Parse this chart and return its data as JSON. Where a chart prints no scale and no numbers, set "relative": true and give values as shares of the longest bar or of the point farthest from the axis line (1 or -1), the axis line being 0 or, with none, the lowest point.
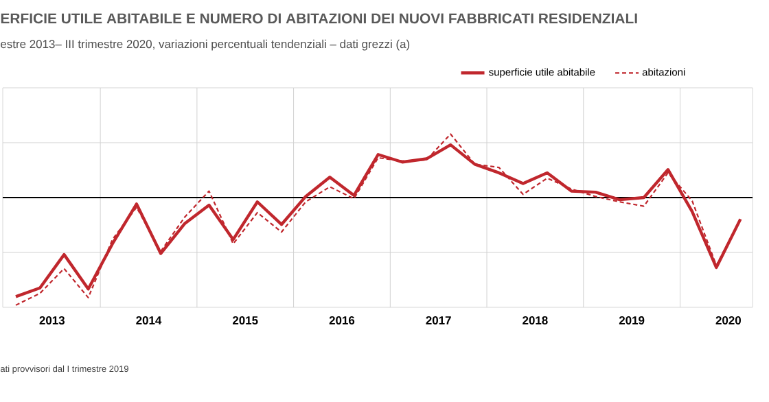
{
  "chart_data": {
    "type": "line",
    "title": "ERFICIE UTILE ABITABILE E NUMERO DI ABITAZIONI DEI NUOVI FABBRICATI RESIDENZIALI",
    "subtitle": "estre 2013– III trimestre 2020, variazioni percentuali tendenziali – dati grezzi (a)",
    "annotations": [
      "ati provvisori dal I trimestre 2019"
    ],
    "relative": true,
    "x": [
      2013.125,
      2013.375,
      2013.625,
      2013.875,
      2014.125,
      2014.375,
      2014.625,
      2014.875,
      2015.125,
      2015.375,
      2015.625,
      2015.875,
      2016.125,
      2016.375,
      2016.625,
      2016.875,
      2017.125,
      2017.375,
      2017.625,
      2017.875,
      2018.125,
      2018.375,
      2018.625,
      2018.875,
      2019.125,
      2019.375,
      2019.625,
      2019.875,
      2020.125,
      2020.375,
      2020.625
    ],
    "xlim": [
      2012.99,
      2020.75
    ],
    "xticks": [
      {
        "value": 2013.5,
        "label": "2013"
      },
      {
        "value": 2014.5,
        "label": "2014"
      },
      {
        "value": 2015.5,
        "label": "2015"
      },
      {
        "value": 2016.5,
        "label": "2016"
      },
      {
        "value": 2017.5,
        "label": "2017"
      },
      {
        "value": 2018.5,
        "label": "2018"
      },
      {
        "value": 2019.5,
        "label": "2019"
      },
      {
        "value": 2020.5,
        "label": "2020"
      }
    ],
    "series": [
      {
        "name": "superficie utile abitabile",
        "color": "#c0272d",
        "line_style": "solid",
        "values": [
          -0.92,
          -0.84,
          -0.53,
          -0.85,
          -0.43,
          -0.06,
          -0.52,
          -0.24,
          -0.07,
          -0.39,
          -0.04,
          -0.25,
          0.01,
          0.19,
          0.02,
          0.4,
          0.33,
          0.36,
          0.49,
          0.31,
          0.23,
          0.13,
          0.23,
          0.06,
          0.05,
          -0.02,
          0.0,
          0.26,
          -0.13,
          -0.65,
          -0.2
        ]
      },
      {
        "name": "abitazioni",
        "color": "#c0272d",
        "line_style": "dashed",
        "values": [
          -1.0,
          -0.89,
          -0.66,
          -0.93,
          -0.39,
          -0.09,
          -0.5,
          -0.18,
          0.06,
          -0.43,
          -0.14,
          -0.32,
          -0.04,
          0.1,
          -0.01,
          0.37,
          0.34,
          0.35,
          0.59,
          0.31,
          0.28,
          0.03,
          0.18,
          0.08,
          0.01,
          -0.04,
          -0.08,
          0.23,
          -0.03,
          -0.63,
          -0.2
        ]
      }
    ],
    "grid": true,
    "legend": "top right"
  }
}
